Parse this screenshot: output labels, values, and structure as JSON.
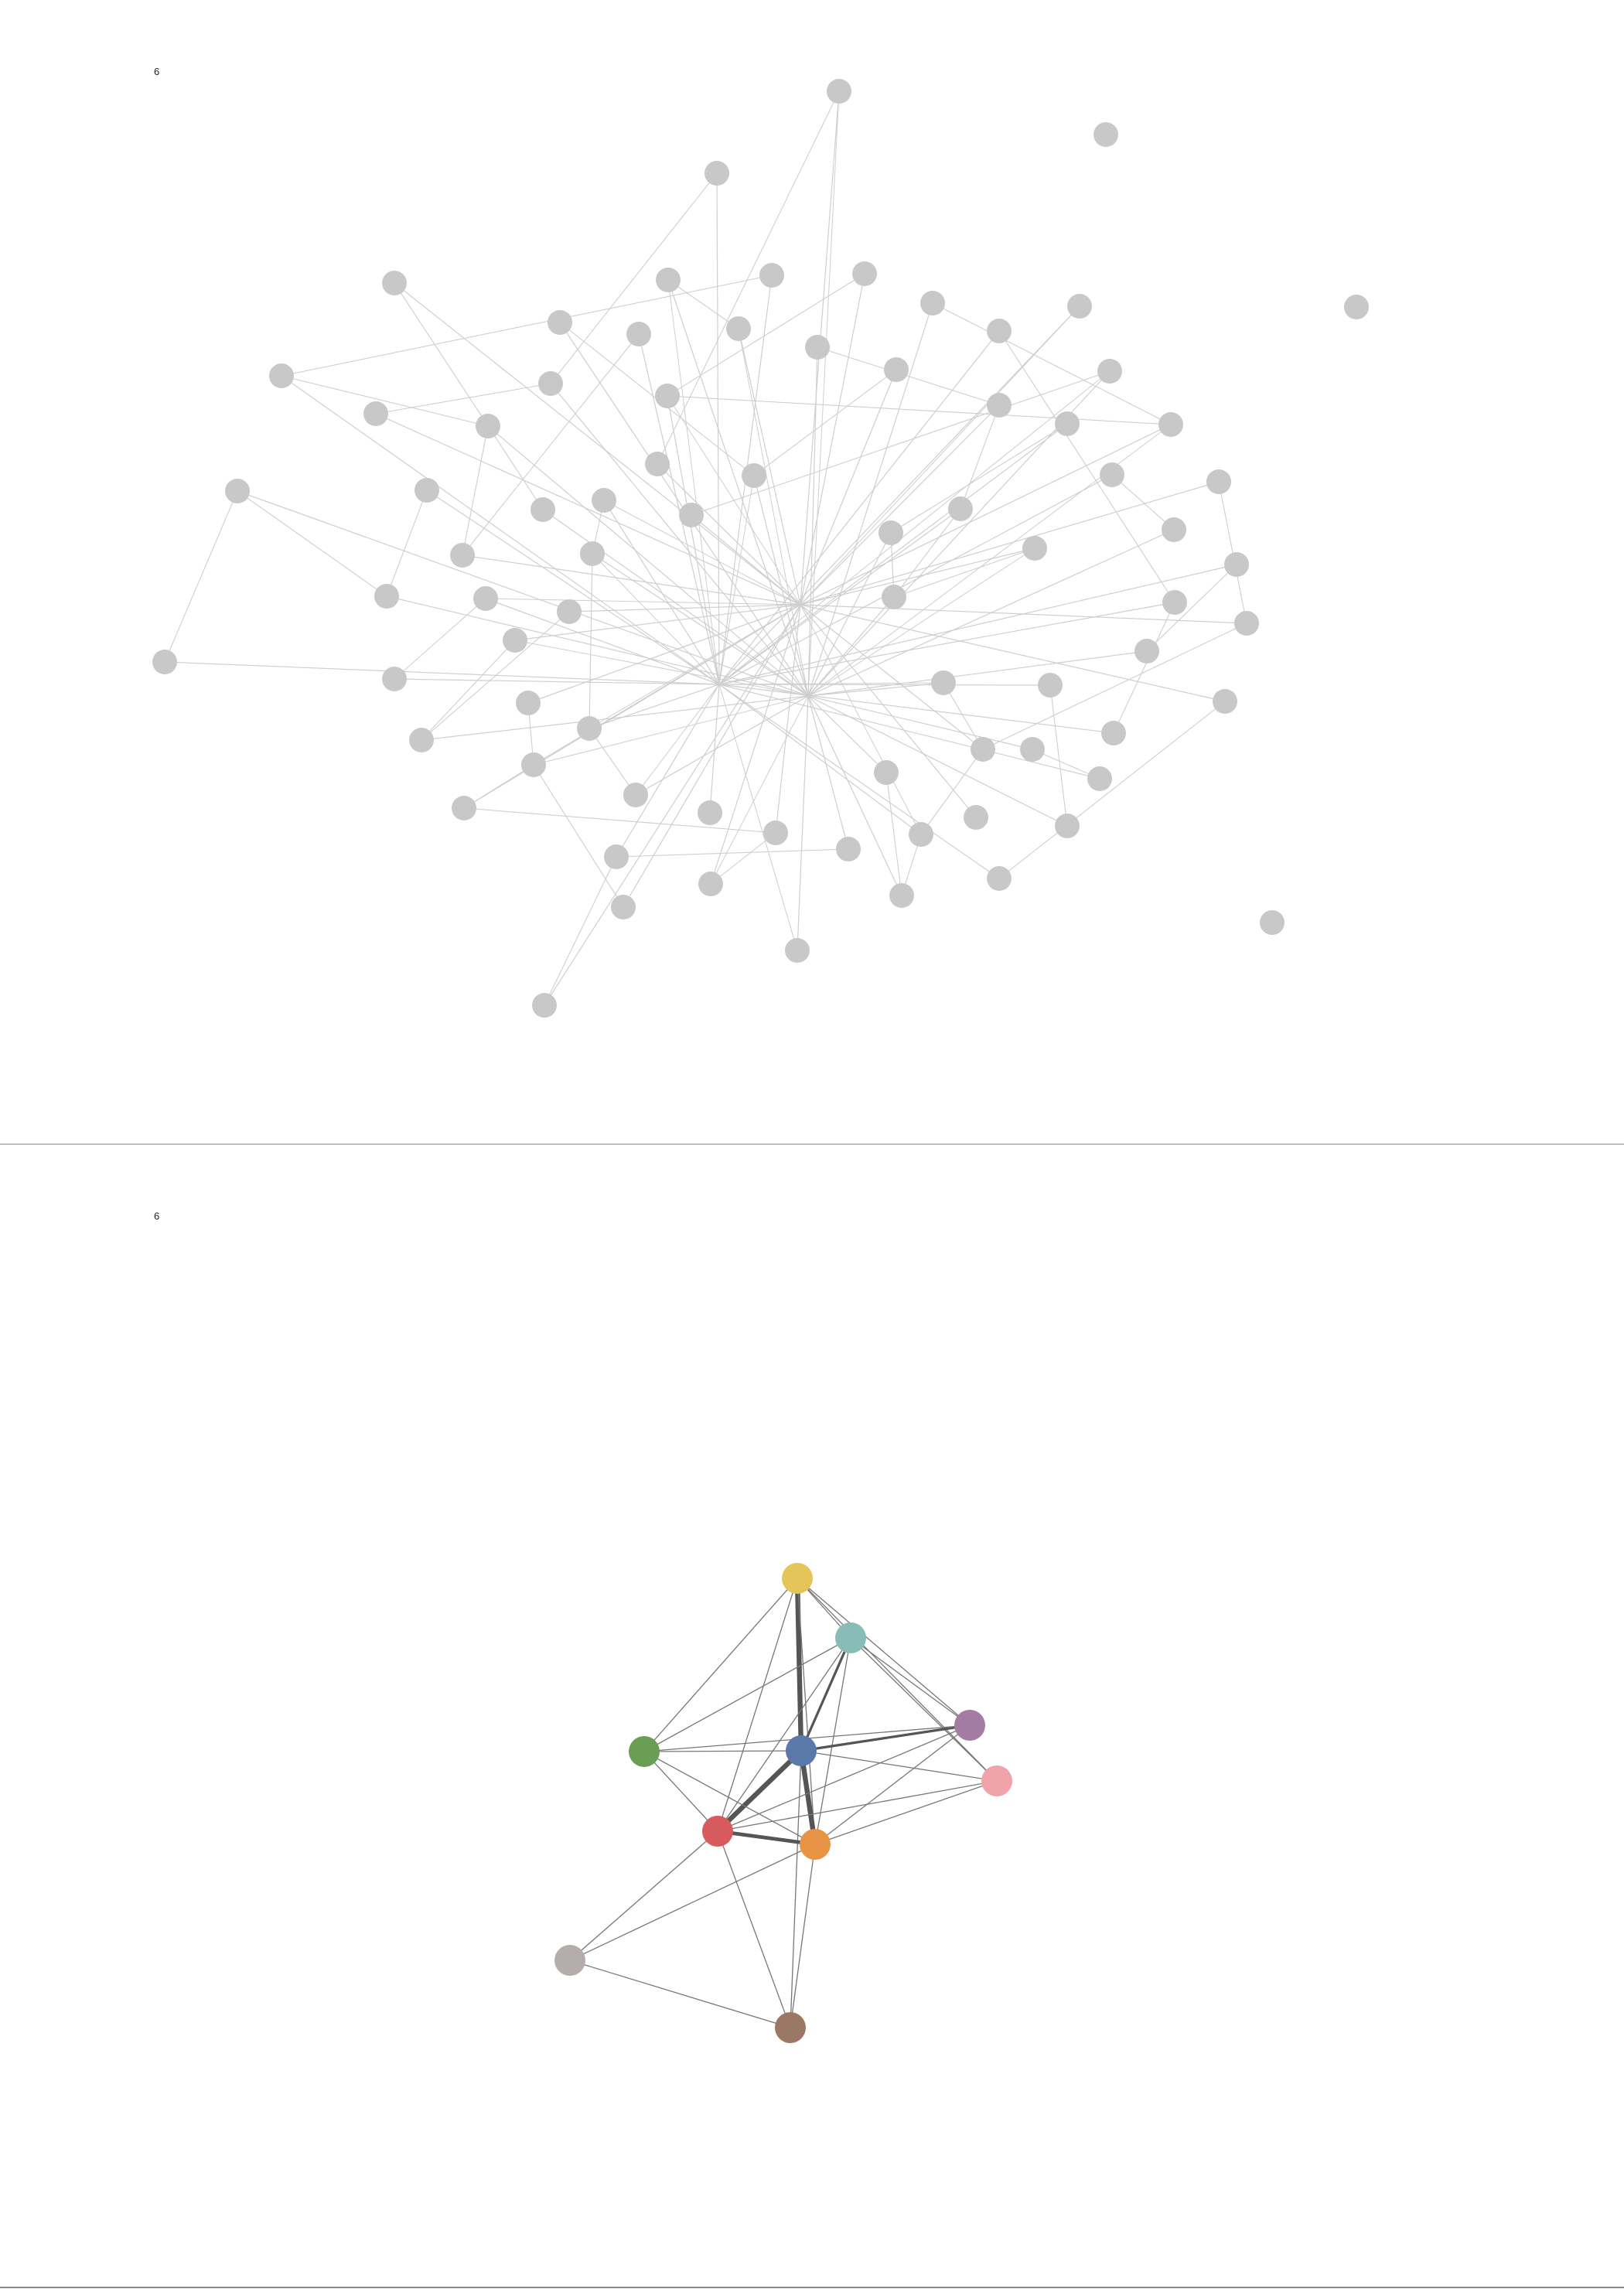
{
  "panels": [
    {
      "label": "6",
      "node_color": "#c8c8c8",
      "edge_color": "#cfcfcf"
    },
    {
      "label": "6",
      "edge_color": "#777777",
      "nodes": [
        {
          "id": "yellow",
          "color": "#e5c55a"
        },
        {
          "id": "teal",
          "color": "#88bcb7"
        },
        {
          "id": "purple",
          "color": "#a47ca3"
        },
        {
          "id": "pink",
          "color": "#f0a4aa"
        },
        {
          "id": "green",
          "color": "#6a9e55"
        },
        {
          "id": "blue",
          "color": "#5a79aa"
        },
        {
          "id": "red",
          "color": "#d75b5c"
        },
        {
          "id": "orange",
          "color": "#e99346"
        },
        {
          "id": "gray",
          "color": "#b5adab"
        },
        {
          "id": "brown",
          "color": "#9a7865"
        }
      ],
      "edges": [
        {
          "source": "yellow",
          "target": "blue",
          "weight": 4
        },
        {
          "source": "yellow",
          "target": "teal",
          "weight": 1
        },
        {
          "source": "yellow",
          "target": "purple",
          "weight": 1
        },
        {
          "source": "yellow",
          "target": "pink",
          "weight": 1
        },
        {
          "source": "yellow",
          "target": "green",
          "weight": 1
        },
        {
          "source": "yellow",
          "target": "red",
          "weight": 1
        },
        {
          "source": "yellow",
          "target": "orange",
          "weight": 1
        },
        {
          "source": "teal",
          "target": "blue",
          "weight": 2
        },
        {
          "source": "teal",
          "target": "purple",
          "weight": 1
        },
        {
          "source": "teal",
          "target": "pink",
          "weight": 1
        },
        {
          "source": "teal",
          "target": "green",
          "weight": 1
        },
        {
          "source": "teal",
          "target": "red",
          "weight": 1
        },
        {
          "source": "teal",
          "target": "orange",
          "weight": 1
        },
        {
          "source": "blue",
          "target": "purple",
          "weight": 2
        },
        {
          "source": "blue",
          "target": "pink",
          "weight": 1
        },
        {
          "source": "blue",
          "target": "green",
          "weight": 1
        },
        {
          "source": "blue",
          "target": "red",
          "weight": 4
        },
        {
          "source": "blue",
          "target": "orange",
          "weight": 4
        },
        {
          "source": "blue",
          "target": "brown",
          "weight": 1
        },
        {
          "source": "green",
          "target": "purple",
          "weight": 1
        },
        {
          "source": "green",
          "target": "red",
          "weight": 1
        },
        {
          "source": "green",
          "target": "orange",
          "weight": 1
        },
        {
          "source": "red",
          "target": "orange",
          "weight": 3
        },
        {
          "source": "red",
          "target": "purple",
          "weight": 1
        },
        {
          "source": "red",
          "target": "pink",
          "weight": 1
        },
        {
          "source": "red",
          "target": "gray",
          "weight": 1
        },
        {
          "source": "red",
          "target": "brown",
          "weight": 1
        },
        {
          "source": "orange",
          "target": "purple",
          "weight": 1
        },
        {
          "source": "orange",
          "target": "pink",
          "weight": 1
        },
        {
          "source": "orange",
          "target": "gray",
          "weight": 1
        },
        {
          "source": "orange",
          "target": "brown",
          "weight": 1
        },
        {
          "source": "gray",
          "target": "brown",
          "weight": 1
        }
      ]
    }
  ]
}
